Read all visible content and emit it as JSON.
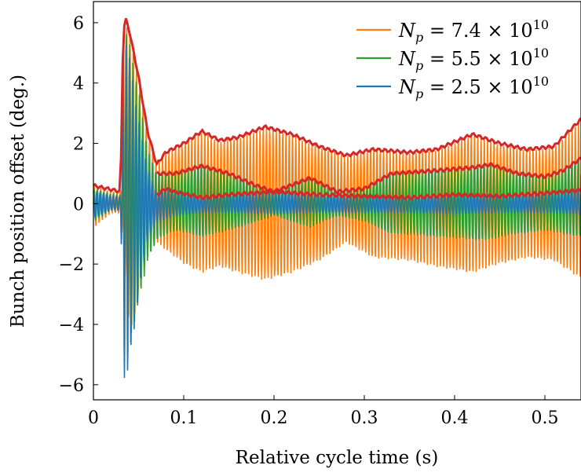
{
  "chart_data": {
    "type": "line",
    "title": "",
    "xlabel": "Relative cycle time (s)",
    "ylabel": "Bunch position offset (deg.)",
    "xlim": [
      0,
      0.54
    ],
    "ylim": [
      -6.5,
      6.7
    ],
    "x_ticks": [
      0,
      0.1,
      0.2,
      0.3,
      0.4,
      0.5
    ],
    "x_tick_labels": [
      "0",
      "0.1",
      "0.2",
      "0.3",
      "0.4",
      "0.5"
    ],
    "y_ticks": [
      -6,
      -4,
      -2,
      0,
      2,
      4,
      6
    ],
    "y_tick_labels": [
      "−6",
      "−4",
      "−2",
      "0",
      "2",
      "4",
      "6"
    ],
    "grid": false,
    "legend_position": "top-right",
    "series": [
      {
        "name": "N_p = 7.4 × 10^10",
        "legend_label": "N p = 7.4 × 10 10",
        "color": "#ff7f0e",
        "envelope_upper": [
          [
            0,
            0.6
          ],
          [
            0.02,
            0.4
          ],
          [
            0.03,
            0.4
          ],
          [
            0.033,
            5.8
          ],
          [
            0.036,
            6.1
          ],
          [
            0.04,
            5.7
          ],
          [
            0.05,
            4.2
          ],
          [
            0.06,
            2.4
          ],
          [
            0.07,
            1.3
          ],
          [
            0.08,
            1.7
          ],
          [
            0.1,
            2.0
          ],
          [
            0.12,
            2.4
          ],
          [
            0.14,
            2.1
          ],
          [
            0.16,
            2.2
          ],
          [
            0.19,
            2.55
          ],
          [
            0.22,
            2.3
          ],
          [
            0.25,
            1.9
          ],
          [
            0.28,
            1.6
          ],
          [
            0.31,
            1.8
          ],
          [
            0.35,
            1.7
          ],
          [
            0.38,
            1.8
          ],
          [
            0.42,
            2.3
          ],
          [
            0.45,
            2.0
          ],
          [
            0.48,
            1.8
          ],
          [
            0.51,
            1.9
          ],
          [
            0.54,
            2.8
          ]
        ],
        "envelope_lower": [
          [
            0,
            -0.8
          ],
          [
            0.02,
            -0.3
          ],
          [
            0.03,
            -0.3
          ],
          [
            0.04,
            -4.5
          ],
          [
            0.05,
            -3.0
          ],
          [
            0.06,
            -1.6
          ],
          [
            0.07,
            -1.3
          ],
          [
            0.1,
            -2.0
          ],
          [
            0.12,
            -2.3
          ],
          [
            0.14,
            -2.1
          ],
          [
            0.16,
            -2.3
          ],
          [
            0.19,
            -2.55
          ],
          [
            0.22,
            -2.3
          ],
          [
            0.25,
            -1.9
          ],
          [
            0.28,
            -1.3
          ],
          [
            0.31,
            -1.8
          ],
          [
            0.35,
            -1.9
          ],
          [
            0.38,
            -2.1
          ],
          [
            0.42,
            -2.3
          ],
          [
            0.45,
            -2.0
          ],
          [
            0.48,
            -1.8
          ],
          [
            0.51,
            -1.9
          ],
          [
            0.54,
            -2.5
          ]
        ]
      },
      {
        "name": "N_p = 5.5 × 10^10",
        "legend_label": "N p = 5.5 × 10 10",
        "color": "#2ca02c",
        "envelope_upper": [
          [
            0,
            0.5
          ],
          [
            0.02,
            0.3
          ],
          [
            0.03,
            0.3
          ],
          [
            0.033,
            5.7
          ],
          [
            0.036,
            5.9
          ],
          [
            0.04,
            5.3
          ],
          [
            0.05,
            3.8
          ],
          [
            0.06,
            1.8
          ],
          [
            0.07,
            1.0
          ],
          [
            0.09,
            1.0
          ],
          [
            0.12,
            1.25
          ],
          [
            0.15,
            1.0
          ],
          [
            0.18,
            0.6
          ],
          [
            0.2,
            0.4
          ],
          [
            0.24,
            0.85
          ],
          [
            0.27,
            0.4
          ],
          [
            0.3,
            0.5
          ],
          [
            0.33,
            1.0
          ],
          [
            0.38,
            1.1
          ],
          [
            0.42,
            1.2
          ],
          [
            0.44,
            1.3
          ],
          [
            0.47,
            1.0
          ],
          [
            0.5,
            0.9
          ],
          [
            0.52,
            1.1
          ],
          [
            0.54,
            1.5
          ]
        ],
        "envelope_lower": [
          [
            0,
            -0.6
          ],
          [
            0.02,
            -0.2
          ],
          [
            0.03,
            -0.2
          ],
          [
            0.04,
            -4.7
          ],
          [
            0.05,
            -3.3
          ],
          [
            0.06,
            -1.9
          ],
          [
            0.07,
            -1.2
          ],
          [
            0.09,
            -0.9
          ],
          [
            0.12,
            -1.1
          ],
          [
            0.15,
            -0.9
          ],
          [
            0.18,
            -0.6
          ],
          [
            0.2,
            -0.4
          ],
          [
            0.24,
            -0.8
          ],
          [
            0.27,
            -0.4
          ],
          [
            0.3,
            -0.6
          ],
          [
            0.33,
            -1.0
          ],
          [
            0.38,
            -1.1
          ],
          [
            0.42,
            -1.2
          ],
          [
            0.44,
            -1.2
          ],
          [
            0.47,
            -1.0
          ],
          [
            0.5,
            -0.9
          ],
          [
            0.52,
            -1.0
          ],
          [
            0.54,
            -1.1
          ]
        ]
      },
      {
        "name": "N_p = 2.5 × 10^10",
        "legend_label": "N p = 2.5 × 10 10",
        "color": "#1f77b4",
        "envelope_upper": [
          [
            0,
            0.45
          ],
          [
            0.02,
            0.25
          ],
          [
            0.03,
            0.25
          ],
          [
            0.033,
            5.6
          ],
          [
            0.036,
            5.5
          ],
          [
            0.04,
            4.8
          ],
          [
            0.05,
            2.8
          ],
          [
            0.06,
            1.2
          ],
          [
            0.07,
            0.3
          ],
          [
            0.08,
            0.5
          ],
          [
            0.09,
            0.4
          ],
          [
            0.12,
            0.2
          ],
          [
            0.15,
            0.3
          ],
          [
            0.2,
            0.4
          ],
          [
            0.25,
            0.3
          ],
          [
            0.3,
            0.25
          ],
          [
            0.35,
            0.2
          ],
          [
            0.4,
            0.3
          ],
          [
            0.45,
            0.25
          ],
          [
            0.5,
            0.35
          ],
          [
            0.54,
            0.45
          ]
        ],
        "envelope_lower": [
          [
            0,
            -0.5
          ],
          [
            0.02,
            -0.2
          ],
          [
            0.03,
            -0.2
          ],
          [
            0.034,
            -5.8
          ],
          [
            0.038,
            -5.6
          ],
          [
            0.045,
            -4.2
          ],
          [
            0.05,
            -3.0
          ],
          [
            0.06,
            -1.2
          ],
          [
            0.07,
            -0.6
          ],
          [
            0.08,
            -0.5
          ],
          [
            0.09,
            -0.4
          ],
          [
            0.12,
            -0.3
          ],
          [
            0.15,
            -0.3
          ],
          [
            0.2,
            -0.35
          ],
          [
            0.25,
            -0.3
          ],
          [
            0.3,
            -0.3
          ],
          [
            0.35,
            -0.3
          ],
          [
            0.4,
            -0.35
          ],
          [
            0.45,
            -0.3
          ],
          [
            0.5,
            -0.3
          ],
          [
            0.54,
            -0.35
          ]
        ]
      }
    ],
    "envelope_color": "#d62728",
    "envelope_curves": [
      [
        [
          0,
          0.6
        ],
        [
          0.03,
          0.4
        ],
        [
          0.033,
          5.8
        ],
        [
          0.036,
          6.1
        ],
        [
          0.04,
          5.7
        ],
        [
          0.05,
          4.2
        ],
        [
          0.06,
          2.4
        ],
        [
          0.07,
          1.3
        ],
        [
          0.08,
          1.7
        ],
        [
          0.1,
          2.0
        ],
        [
          0.12,
          2.4
        ],
        [
          0.14,
          2.1
        ],
        [
          0.16,
          2.2
        ],
        [
          0.19,
          2.55
        ],
        [
          0.22,
          2.3
        ],
        [
          0.25,
          1.9
        ],
        [
          0.28,
          1.6
        ],
        [
          0.31,
          1.8
        ],
        [
          0.35,
          1.7
        ],
        [
          0.38,
          1.8
        ],
        [
          0.42,
          2.3
        ],
        [
          0.45,
          2.0
        ],
        [
          0.48,
          1.8
        ],
        [
          0.51,
          1.9
        ],
        [
          0.54,
          2.8
        ]
      ],
      [
        [
          0.07,
          1.0
        ],
        [
          0.09,
          1.0
        ],
        [
          0.12,
          1.25
        ],
        [
          0.15,
          1.0
        ],
        [
          0.18,
          0.6
        ],
        [
          0.2,
          0.4
        ],
        [
          0.24,
          0.85
        ],
        [
          0.27,
          0.4
        ],
        [
          0.3,
          0.5
        ],
        [
          0.33,
          1.0
        ],
        [
          0.38,
          1.1
        ],
        [
          0.42,
          1.2
        ],
        [
          0.44,
          1.3
        ],
        [
          0.47,
          1.0
        ],
        [
          0.5,
          0.9
        ],
        [
          0.52,
          1.1
        ],
        [
          0.54,
          1.5
        ]
      ],
      [
        [
          0.07,
          0.3
        ],
        [
          0.08,
          0.5
        ],
        [
          0.09,
          0.4
        ],
        [
          0.12,
          0.2
        ],
        [
          0.15,
          0.3
        ],
        [
          0.2,
          0.4
        ],
        [
          0.25,
          0.3
        ],
        [
          0.3,
          0.25
        ],
        [
          0.35,
          0.2
        ],
        [
          0.4,
          0.3
        ],
        [
          0.45,
          0.25
        ],
        [
          0.5,
          0.35
        ],
        [
          0.54,
          0.45
        ]
      ]
    ]
  }
}
